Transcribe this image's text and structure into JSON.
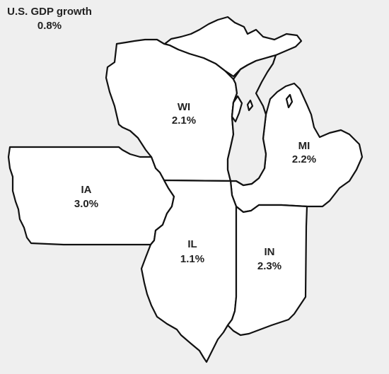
{
  "header": {
    "title": "U.S. GDP growth",
    "value": "0.8%"
  },
  "states": [
    {
      "id": "wi",
      "code": "WI",
      "value": "2.1%",
      "growth": 2.1
    },
    {
      "id": "mi",
      "code": "MI",
      "value": "2.2%",
      "growth": 2.2
    },
    {
      "id": "ia",
      "code": "IA",
      "value": "3.0%",
      "growth": 3.0
    },
    {
      "id": "il",
      "code": "IL",
      "value": "1.1%",
      "growth": 1.1
    },
    {
      "id": "in",
      "code": "IN",
      "value": "2.3%",
      "growth": 2.3
    }
  ],
  "colors": {
    "background": "#efefef",
    "state_fill": "#ffffff",
    "border": "#111111",
    "text": "#222222"
  }
}
